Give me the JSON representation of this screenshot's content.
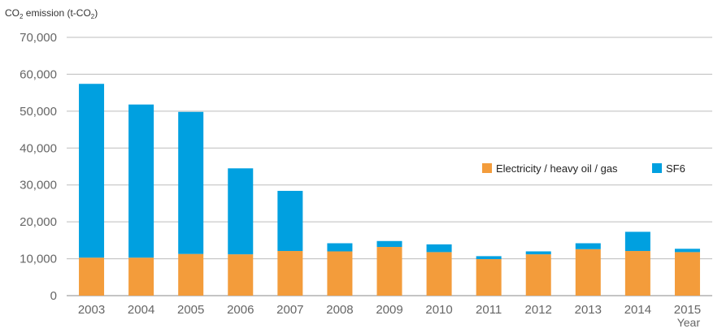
{
  "chart_data": {
    "type": "bar",
    "stacked": true,
    "title": "",
    "ylabel": "CO₂ emission (t-CO₂)",
    "xlabel": "Year",
    "categories": [
      "2003",
      "2004",
      "2005",
      "2006",
      "2007",
      "2008",
      "2009",
      "2010",
      "2011",
      "2012",
      "2013",
      "2014",
      "2015"
    ],
    "series": [
      {
        "name": "Electricity / heavy oil / gas",
        "color": "#f39c3b",
        "values": [
          10300,
          10300,
          11300,
          11200,
          12100,
          12000,
          13200,
          11800,
          9900,
          11200,
          12600,
          12100,
          11800
        ]
      },
      {
        "name": "SF6",
        "color": "#00a0e0",
        "values": [
          47100,
          41500,
          38500,
          23300,
          16300,
          2200,
          1600,
          2100,
          800,
          800,
          1600,
          5200,
          900
        ]
      }
    ],
    "ylim": [
      0,
      70000
    ],
    "yticks": [
      "0",
      "10,000",
      "20,000",
      "30,000",
      "40,000",
      "50,000",
      "60,000",
      "70,000"
    ],
    "ytick_values": [
      0,
      10000,
      20000,
      30000,
      40000,
      50000,
      60000,
      70000
    ],
    "grid": true,
    "legend_position": "right"
  }
}
